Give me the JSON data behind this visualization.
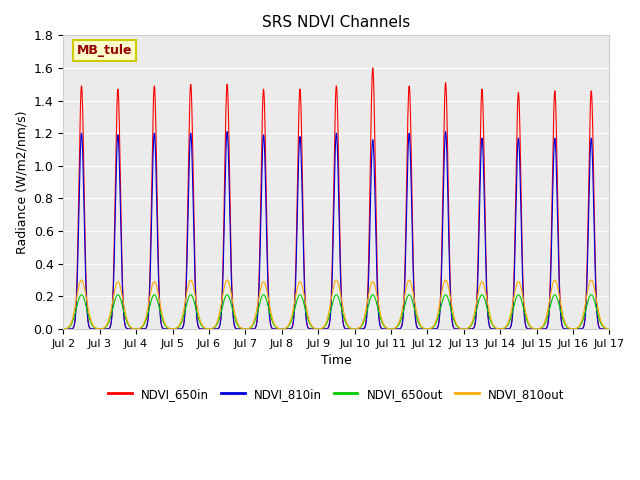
{
  "title": "SRS NDVI Channels",
  "xlabel": "Time",
  "ylabel": "Radiance (W/m2/nm/s)",
  "annotation": "MB_tule",
  "ylim": [
    0.0,
    1.8
  ],
  "xlim_days": [
    2,
    17
  ],
  "legend_labels": [
    "NDVI_650in",
    "NDVI_810in",
    "NDVI_650out",
    "NDVI_810out"
  ],
  "line_colors": {
    "NDVI_650in": "#ff0000",
    "NDVI_810in": "#0000dd",
    "NDVI_650out": "#00cc00",
    "NDVI_810out": "#ffaa00"
  },
  "peaks_650in": [
    1.49,
    1.47,
    1.49,
    1.5,
    1.5,
    1.47,
    1.47,
    1.49,
    1.6,
    1.49,
    1.51,
    1.47,
    1.45,
    1.46,
    1.46
  ],
  "peaks_810in": [
    1.2,
    1.19,
    1.2,
    1.2,
    1.21,
    1.19,
    1.18,
    1.2,
    1.16,
    1.2,
    1.21,
    1.17,
    1.17,
    1.17,
    1.17
  ],
  "peaks_650out": [
    0.21,
    0.21,
    0.21,
    0.21,
    0.21,
    0.21,
    0.21,
    0.21,
    0.21,
    0.21,
    0.21,
    0.21,
    0.21,
    0.21,
    0.21
  ],
  "peaks_810out": [
    0.3,
    0.29,
    0.29,
    0.3,
    0.3,
    0.29,
    0.29,
    0.3,
    0.29,
    0.3,
    0.3,
    0.29,
    0.29,
    0.3,
    0.3
  ],
  "sigma_in": 0.07,
  "sigma_out": 0.14,
  "background_color": "#ebebeb",
  "grid_color": "#ffffff",
  "yticks": [
    0.0,
    0.2,
    0.4,
    0.6,
    0.8,
    1.0,
    1.2,
    1.4,
    1.6,
    1.8
  ],
  "xtick_days": [
    2,
    3,
    4,
    5,
    6,
    7,
    8,
    9,
    10,
    11,
    12,
    13,
    14,
    15,
    16,
    17
  ],
  "xtick_labels": [
    "Jul 2",
    "Jul 3",
    "Jul 4",
    "Jul 5",
    "Jul 6",
    "Jul 7",
    "Jul 8",
    "Jul 9",
    "Jul 10",
    "Jul 11",
    "Jul 12",
    "Jul 13",
    "Jul 14",
    "Jul 15",
    "Jul 16",
    "Jul 17"
  ],
  "figsize": [
    6.4,
    4.8
  ],
  "dpi": 100
}
